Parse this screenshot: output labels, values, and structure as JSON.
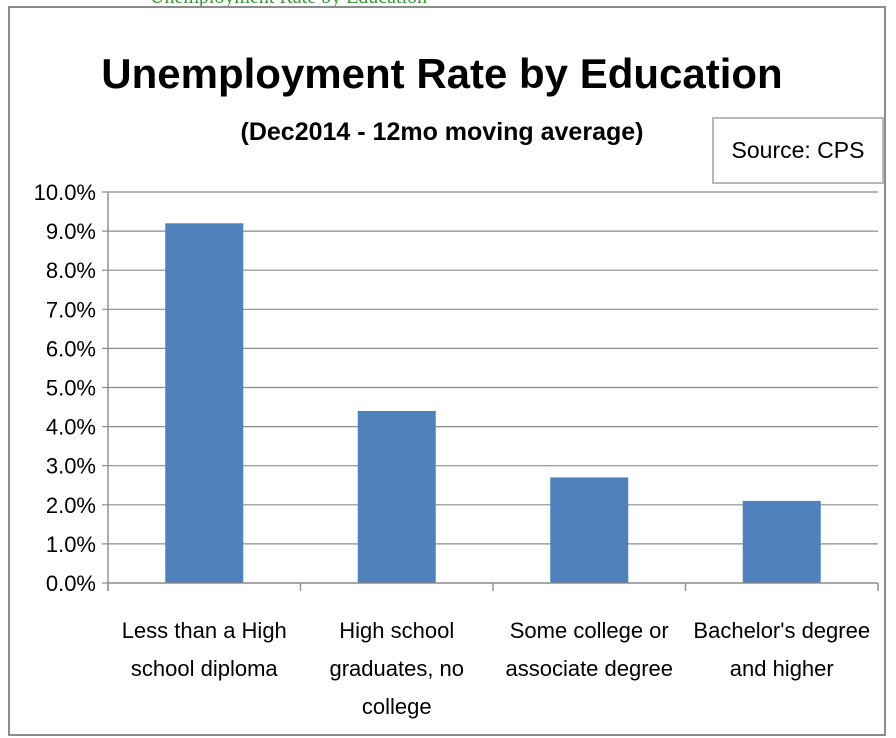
{
  "page_top_text": "Unemployment Rate by Education",
  "source_label": "Source: CPS",
  "chart_data": {
    "type": "bar",
    "title": "Unemployment Rate by Education",
    "subtitle": "(Dec2014 - 12mo moving average)",
    "categories": [
      [
        "Less than a High",
        "school diploma"
      ],
      [
        "High school",
        "graduates, no",
        "college"
      ],
      [
        "Some college or",
        "associate degree"
      ],
      [
        "Bachelor's degree",
        "and higher"
      ]
    ],
    "values": [
      9.2,
      4.4,
      2.7,
      2.1
    ],
    "ylim": [
      0,
      10
    ],
    "yticks": [
      "0.0%",
      "1.0%",
      "2.0%",
      "3.0%",
      "4.0%",
      "5.0%",
      "6.0%",
      "7.0%",
      "8.0%",
      "9.0%",
      "10.0%"
    ],
    "grid": true,
    "bar_color": "#4f81bd",
    "xlabel": "",
    "ylabel": ""
  }
}
